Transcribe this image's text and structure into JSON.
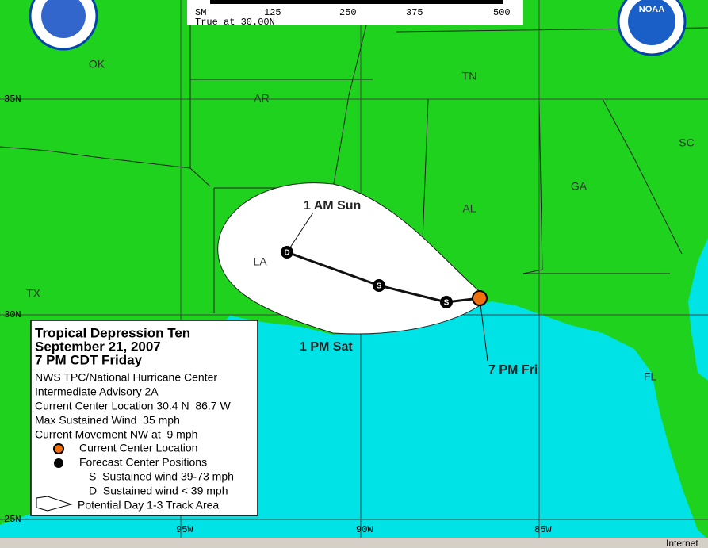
{
  "scale_bar": {
    "labels": [
      "SM",
      "125",
      "250",
      "375",
      "500"
    ],
    "note": "True at 30.00N"
  },
  "logos": {
    "right": "NOAA"
  },
  "map": {
    "states": [
      "OK",
      "AR",
      "TN",
      "SC",
      "GA",
      "AL",
      "LA",
      "TX",
      "FL"
    ],
    "lat_labels": [
      "35N",
      "30N",
      "25N"
    ],
    "lon_labels": [
      "95W",
      "90W",
      "85W"
    ],
    "track_labels": [
      "1 AM Sun",
      "1 PM Sat",
      "7 PM Fri"
    ],
    "markers": [
      "D",
      "S",
      "S"
    ]
  },
  "legend": {
    "title": [
      "Tropical Depression Ten",
      "September 21, 2007",
      "7 PM CDT Friday"
    ],
    "lines": [
      "NWS TPC/National Hurricane Center",
      "Intermediate Advisory 2A",
      "Current Center Location 30.4 N  86.7 W",
      "Max Sustained Wind  35 mph",
      "Current Movement NW at  9 mph"
    ],
    "items": [
      "Current Center Location",
      "Forecast Center Positions",
      "S  Sustained wind 39-73 mph",
      "D  Sustained wind < 39 mph",
      "Potential Day 1-3 Track Area"
    ]
  },
  "status_bar": {
    "zone": "Internet"
  }
}
